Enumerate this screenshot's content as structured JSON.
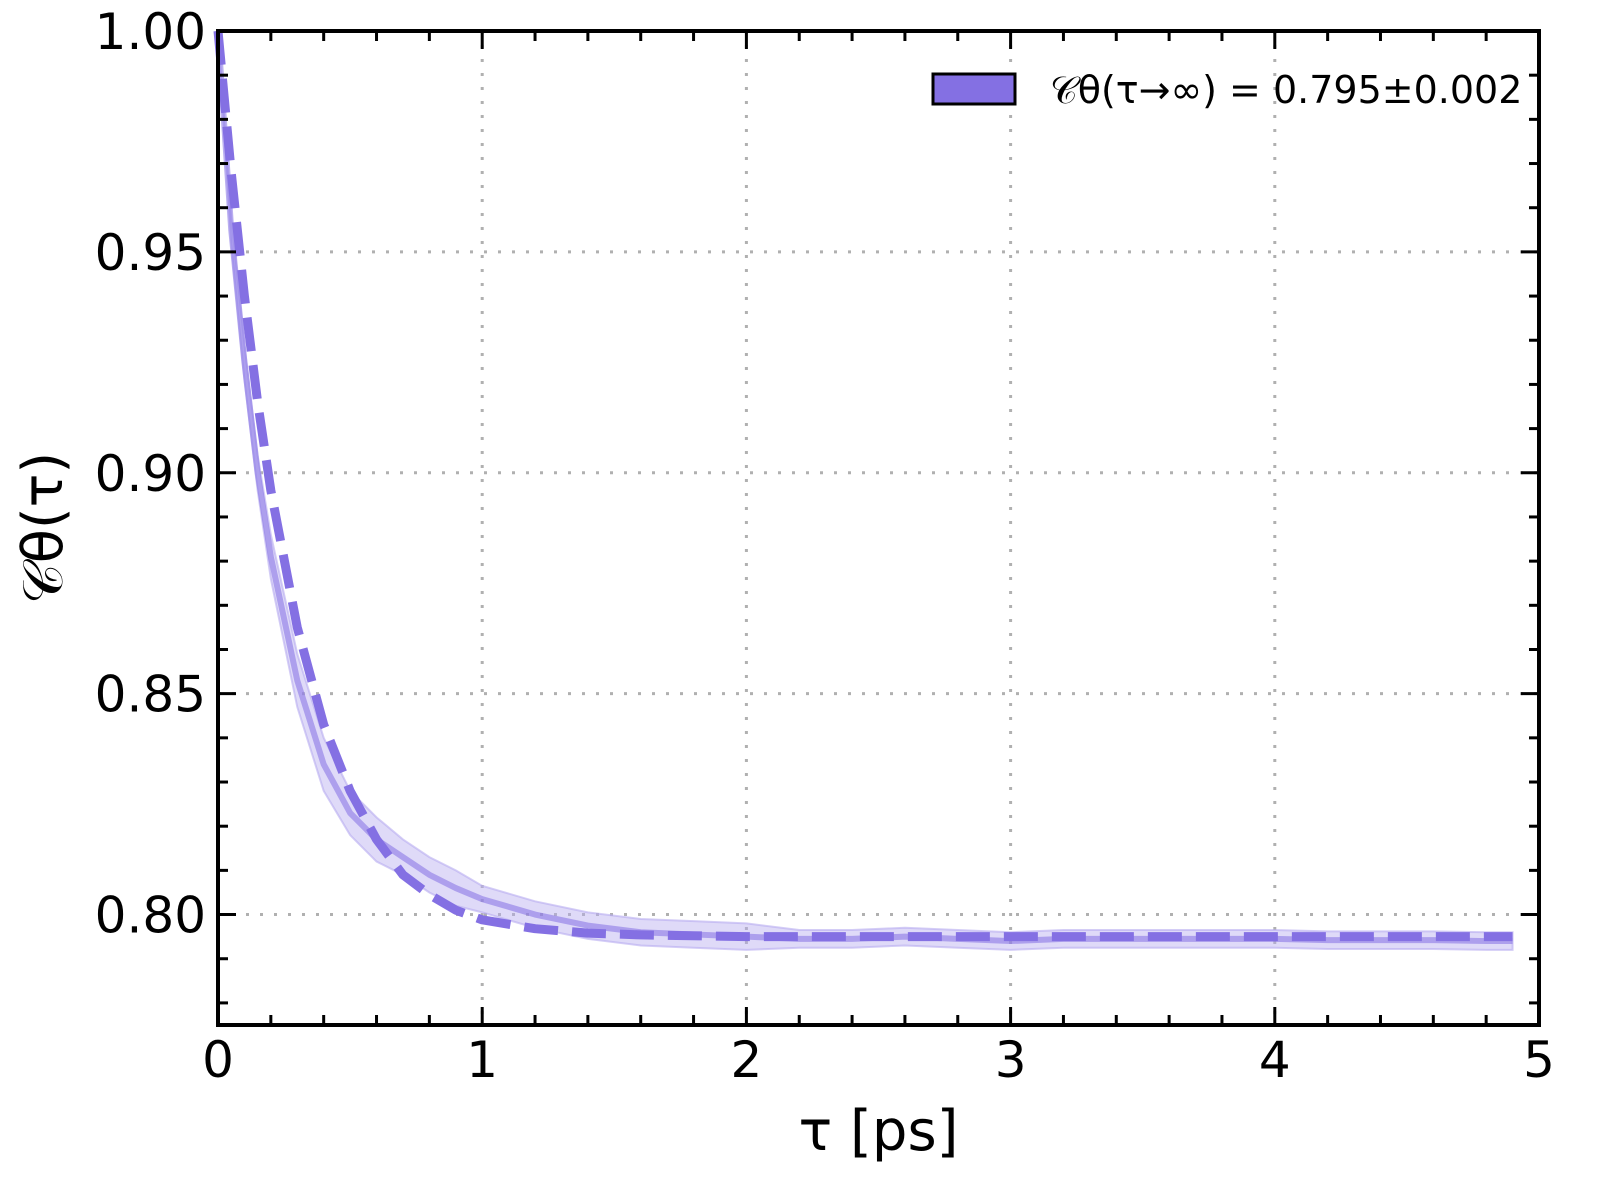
{
  "chart_data": {
    "type": "line",
    "title": "",
    "xlabel": "τ [ps]",
    "ylabel": "𝒞θ(τ)",
    "xlim": [
      0,
      5
    ],
    "ylim": [
      0.775,
      1.0
    ],
    "xticks": [
      0,
      1,
      2,
      3,
      4,
      5
    ],
    "xtick_labels": [
      "0",
      "1",
      "2",
      "3",
      "4",
      "5"
    ],
    "yticks": [
      0.8,
      0.85,
      0.9,
      0.95,
      1.0
    ],
    "ytick_labels": [
      "0.80",
      "0.85",
      "0.90",
      "0.95",
      "1.00"
    ],
    "grid": true,
    "grid_style": "dotted",
    "legend_position": "top-right",
    "legend": [
      {
        "label": "𝒞θ(τ→∞) = 0.795±0.002",
        "swatch": "filled-box"
      }
    ],
    "colors": {
      "series": "#8470e3",
      "band": "#b7acf0",
      "axes": "#000000",
      "grid": "#b0b0b0"
    },
    "series": [
      {
        "style": "solid",
        "x": [
          0,
          0.05,
          0.1,
          0.15,
          0.2,
          0.3,
          0.4,
          0.5,
          0.6,
          0.7,
          0.8,
          0.9,
          1.0,
          1.2,
          1.4,
          1.6,
          1.8,
          2.0,
          2.2,
          2.4,
          2.6,
          2.8,
          3.0,
          3.2,
          3.4,
          3.6,
          3.8,
          4.0,
          4.2,
          4.4,
          4.6,
          4.8,
          4.9
        ],
        "y": [
          1.0,
          0.955,
          0.925,
          0.9,
          0.881,
          0.853,
          0.834,
          0.823,
          0.817,
          0.813,
          0.809,
          0.806,
          0.8035,
          0.8,
          0.7975,
          0.796,
          0.7955,
          0.795,
          0.7945,
          0.7945,
          0.795,
          0.7945,
          0.794,
          0.7945,
          0.7945,
          0.7945,
          0.7945,
          0.7945,
          0.7942,
          0.7942,
          0.7942,
          0.794,
          0.794
        ],
        "band_halfwidth": [
          0.0,
          0.003,
          0.004,
          0.004,
          0.005,
          0.006,
          0.006,
          0.005,
          0.005,
          0.004,
          0.004,
          0.004,
          0.003,
          0.003,
          0.003,
          0.003,
          0.003,
          0.003,
          0.002,
          0.002,
          0.002,
          0.002,
          0.002,
          0.002,
          0.002,
          0.002,
          0.002,
          0.002,
          0.002,
          0.002,
          0.002,
          0.002,
          0.002
        ]
      },
      {
        "style": "dashed",
        "x": [
          0,
          0.05,
          0.1,
          0.15,
          0.2,
          0.3,
          0.4,
          0.5,
          0.6,
          0.7,
          0.8,
          0.9,
          1.0,
          1.2,
          1.4,
          1.6,
          1.8,
          2.0,
          2.5,
          3.0,
          3.5,
          4.0,
          4.5,
          4.9
        ],
        "y": [
          1.0,
          0.968,
          0.94,
          0.916,
          0.896,
          0.865,
          0.843,
          0.828,
          0.817,
          0.809,
          0.8045,
          0.801,
          0.7988,
          0.7968,
          0.7958,
          0.7954,
          0.7952,
          0.795,
          0.795,
          0.795,
          0.795,
          0.795,
          0.795,
          0.795
        ]
      }
    ]
  }
}
